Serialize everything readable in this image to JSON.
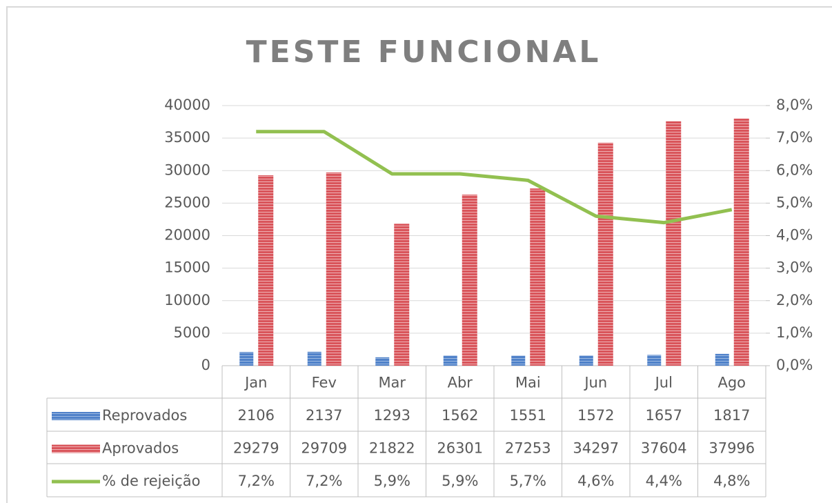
{
  "chart_data": {
    "type": "bar",
    "title": "TESTE FUNCIONAL",
    "categories": [
      "Jan",
      "Fev",
      "Mar",
      "Abr",
      "Mai",
      "Jun",
      "Jul",
      "Ago"
    ],
    "series": [
      {
        "name": "Reprovados",
        "type": "bar",
        "color": "#4f81c9",
        "values": [
          2106,
          2137,
          1293,
          1562,
          1551,
          1572,
          1657,
          1817
        ]
      },
      {
        "name": "Aprovados",
        "type": "bar",
        "color": "#d9545a",
        "values": [
          29279,
          29709,
          21822,
          26301,
          27253,
          34297,
          37604,
          37996
        ]
      },
      {
        "name": "% de rejeição",
        "type": "line",
        "axis": "y2",
        "color": "#92c050",
        "values": [
          7.2,
          7.2,
          5.9,
          5.9,
          5.7,
          4.6,
          4.4,
          4.8
        ],
        "value_labels": [
          "7,2%",
          "7,2%",
          "5,9%",
          "5,9%",
          "5,7%",
          "4,6%",
          "4,4%",
          "4,8%"
        ]
      }
    ],
    "ylim": [
      0,
      40000
    ],
    "yticks": [
      0,
      5000,
      10000,
      15000,
      20000,
      25000,
      30000,
      35000,
      40000
    ],
    "y2lim": [
      0,
      8
    ],
    "y2ticks": [
      {
        "value": 0,
        "label": "0,0%"
      },
      {
        "value": 1,
        "label": "1,0%"
      },
      {
        "value": 2,
        "label": "2,0%"
      },
      {
        "value": 3,
        "label": "3,0%"
      },
      {
        "value": 4,
        "label": "4,0%"
      },
      {
        "value": 5,
        "label": "5,0%"
      },
      {
        "value": 6,
        "label": "6,0%"
      },
      {
        "value": 7,
        "label": "7,0%"
      },
      {
        "value": 8,
        "label": "8,0%"
      }
    ],
    "grid": true,
    "data_table": true
  }
}
